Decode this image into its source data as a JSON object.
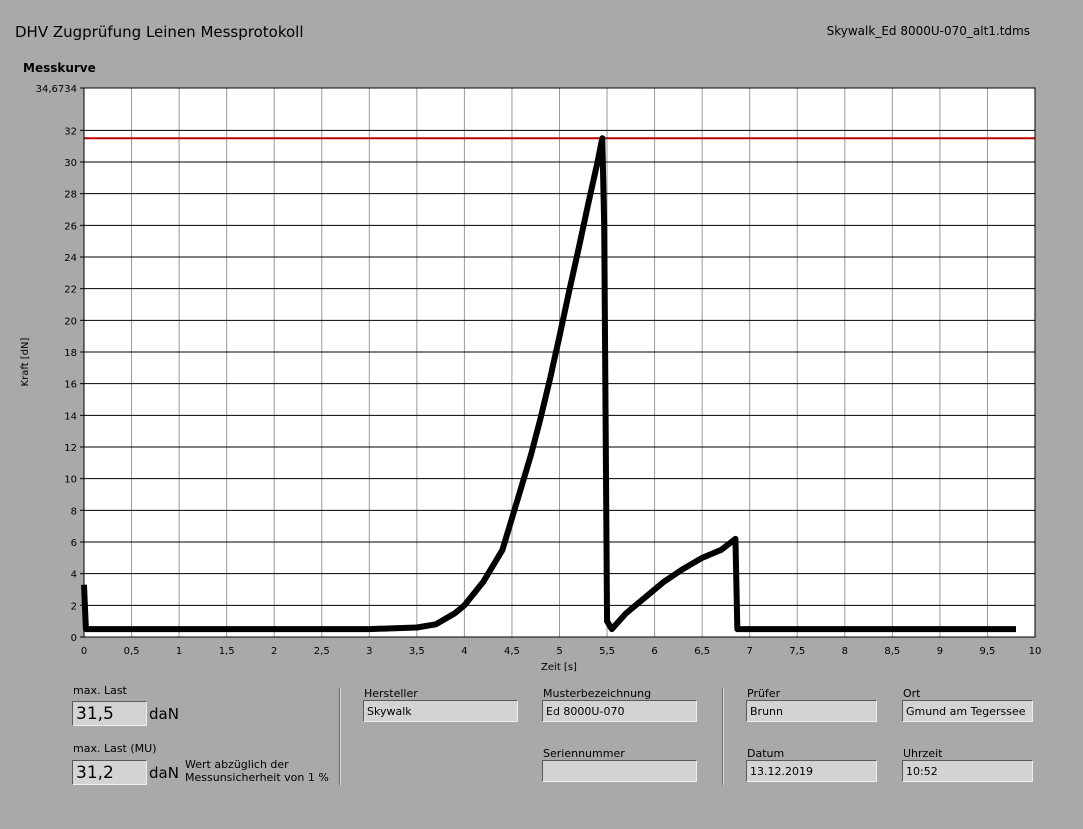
{
  "header": {
    "title": "DHV Zugprüfung Leinen Messprotokoll",
    "filename": "Skywalk_Ed 8000U-070_alt1.tdms"
  },
  "chart_data": {
    "type": "line",
    "title": "Messkurve",
    "x_label": "Zeit [s]",
    "y_label": "Kraft [dN]",
    "x": [
      0,
      0.02,
      0.5,
      1,
      1.5,
      2,
      2.5,
      3,
      3.5,
      3.7,
      3.9,
      4.0,
      4.2,
      4.4,
      4.5,
      4.6,
      4.7,
      4.8,
      4.9,
      5.0,
      5.1,
      5.2,
      5.3,
      5.4,
      5.45,
      5.47,
      5.5,
      5.55,
      5.7,
      5.9,
      6.1,
      6.3,
      6.5,
      6.7,
      6.85,
      6.87,
      7,
      8,
      9,
      9.8
    ],
    "series": [
      {
        "color": "#000000",
        "values": [
          3.3,
          0.5,
          0.5,
          0.5,
          0.5,
          0.5,
          0.5,
          0.5,
          0.6,
          0.8,
          1.5,
          2,
          3.5,
          5.5,
          7.5,
          9.5,
          11.5,
          13.8,
          16.3,
          19,
          21.8,
          24.5,
          27.3,
          30,
          31.5,
          26,
          1,
          0.5,
          1.5,
          2.5,
          3.5,
          4.3,
          5,
          5.5,
          6.2,
          0.5,
          0.5,
          0.5,
          0.5,
          0.5
        ]
      }
    ],
    "reference_line": {
      "value": 31.5,
      "color": "#c00000"
    },
    "xlim": [
      0,
      10
    ],
    "ylim": [
      0,
      34.6734
    ],
    "xticks": [
      0,
      {
        "value": 0.5,
        "label": "0,5"
      },
      1,
      {
        "value": 1.5,
        "label": "1,5"
      },
      2,
      {
        "value": 2.5,
        "label": "2,5"
      },
      3,
      {
        "value": 3.5,
        "label": "3,5"
      },
      4,
      {
        "value": 4.5,
        "label": "4,5"
      },
      5,
      {
        "value": 5.5,
        "label": "5,5"
      },
      6,
      {
        "value": 6.5,
        "label": "6,5"
      },
      7,
      {
        "value": 7.5,
        "label": "7,5"
      },
      8,
      {
        "value": 8.5,
        "label": "8,5"
      },
      9,
      {
        "value": 9.5,
        "label": "9,5"
      },
      10
    ],
    "yticks": [
      0,
      2,
      4,
      6,
      8,
      10,
      12,
      14,
      16,
      18,
      20,
      22,
      24,
      26,
      28,
      30,
      32,
      {
        "value": 34.6734,
        "label": "34,6734"
      }
    ],
    "grid": true
  },
  "results": {
    "max_label": "max. Last",
    "max_value": "31,5",
    "max_unit": "daN",
    "mu_label": "max. Last (MU)",
    "mu_value": "31,2",
    "mu_unit": "daN",
    "mu_note": "Wert abzüglich der\nMessunsicherheit von 1 %"
  },
  "fields": [
    {
      "label": "Hersteller",
      "value": "Skywalk"
    },
    {
      "label": "Musterbezeichnung",
      "value": "Ed 8000U-070"
    },
    {
      "label": "Seriennummer"
    },
    {
      "label": "Prüfer",
      "value": "Brunn"
    },
    {
      "label": "Ort",
      "value": "Gmund am Tegerssee"
    },
    {
      "label": "Datum",
      "value": "13.12.2019"
    },
    {
      "label": "Uhrzeit",
      "value": "10:52"
    }
  ]
}
